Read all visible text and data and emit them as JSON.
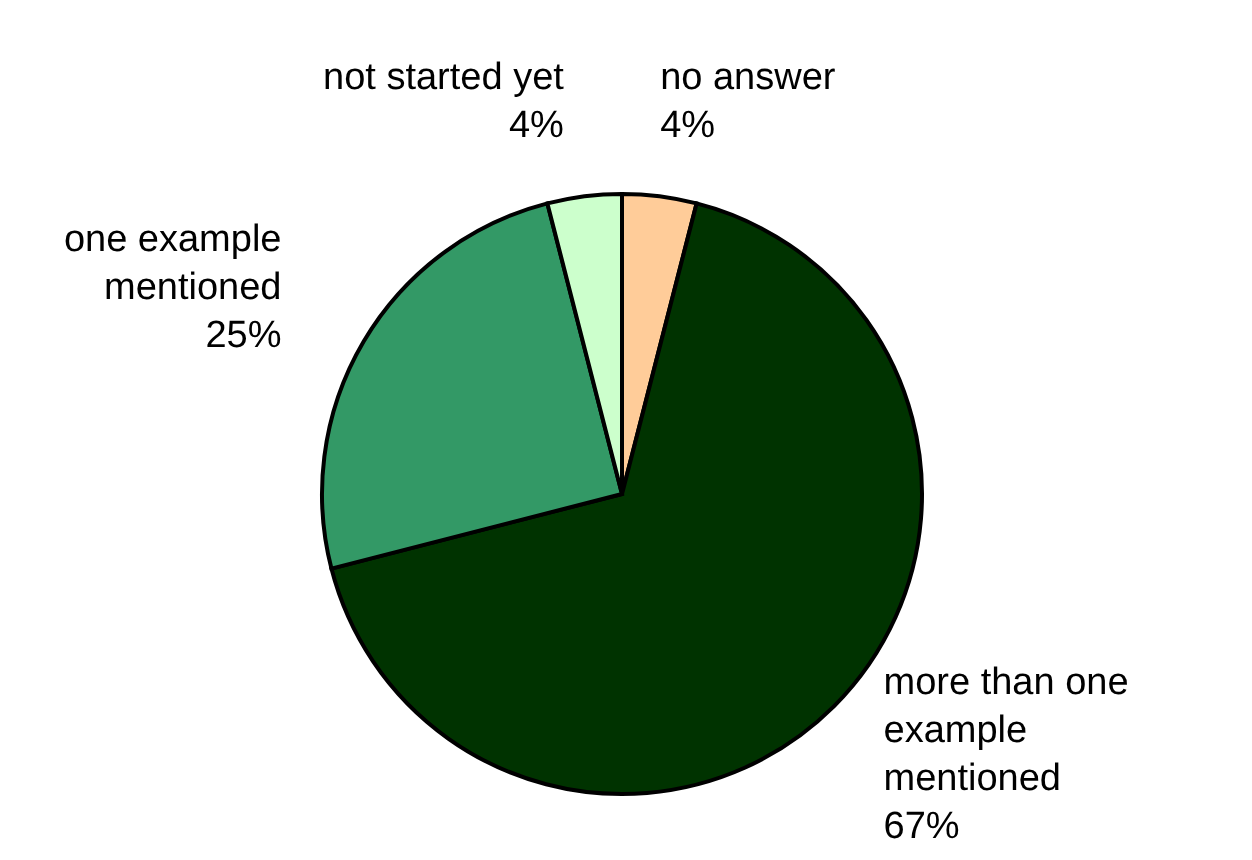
{
  "chart_data": {
    "type": "pie",
    "categories": [
      "no answer",
      "more than one example mentioned",
      "one example mentioned",
      "not started yet"
    ],
    "values": [
      4,
      67,
      25,
      4
    ],
    "colors": [
      "#ffcc99",
      "#003300",
      "#339966",
      "#ccffcc"
    ],
    "value_labels": [
      "4%",
      "67%",
      "25%",
      "4%"
    ]
  }
}
